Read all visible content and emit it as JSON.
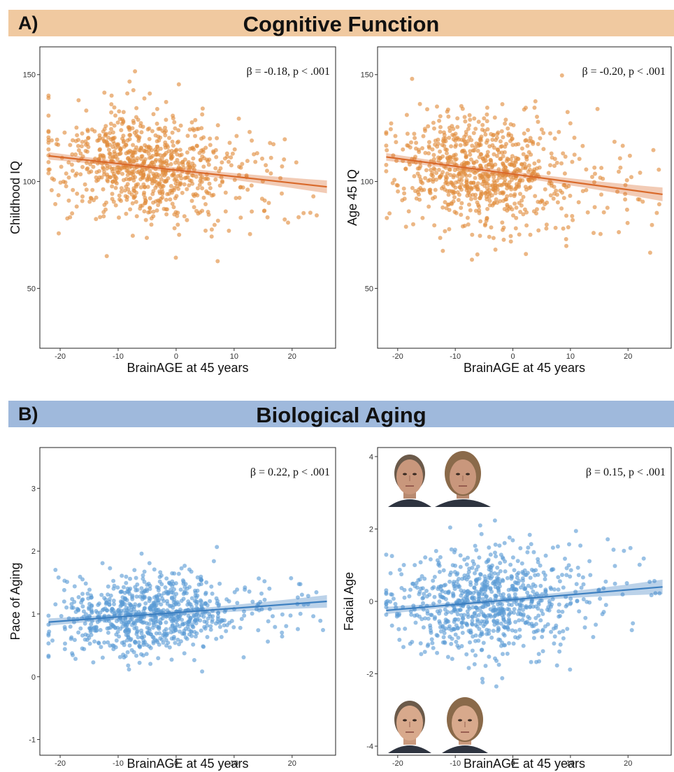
{
  "banners": {
    "a": {
      "letter": "A)",
      "title": "Cognitive Function",
      "color": "#f0c9a0"
    },
    "b": {
      "letter": "B)",
      "title": "Biological Aging",
      "color": "#9fb9dc"
    }
  },
  "colors": {
    "orange": "#e08a3a",
    "orange_line": "#d9692a",
    "blue": "#5b9bd5",
    "blue_line": "#3c7fc0"
  },
  "chart_data": [
    {
      "type": "scatter",
      "xlabel": "BrainAGE at 45 years",
      "ylabel": "Childhood IQ",
      "annotation": "β = -0.18, p < .001",
      "xlim": [
        -23.5,
        27.5
      ],
      "ylim": [
        22,
        163
      ],
      "xticks": [
        -20,
        -10,
        0,
        10,
        20
      ],
      "yticks": [
        50,
        100,
        150
      ],
      "trend": {
        "x": [
          -22,
          26
        ],
        "y": [
          112,
          97.5
        ],
        "band": [
          1.2,
          3.0
        ]
      },
      "scatter_center": [
        -5,
        106
      ],
      "scatter_spread": [
        7.5,
        13
      ],
      "n_points": 820,
      "color": "orange",
      "grid": false
    },
    {
      "type": "scatter",
      "xlabel": "BrainAGE at 45 years",
      "ylabel": "Age 45 IQ",
      "annotation": "β = -0.20, p < .001",
      "xlim": [
        -23.5,
        27.5
      ],
      "ylim": [
        22,
        163
      ],
      "xticks": [
        -20,
        -10,
        0,
        10,
        20
      ],
      "yticks": [
        50,
        100,
        150
      ],
      "trend": {
        "x": [
          -22,
          26
        ],
        "y": [
          111.5,
          94
        ],
        "band": [
          1.2,
          3.2
        ]
      },
      "scatter_center": [
        -5,
        105
      ],
      "scatter_spread": [
        7.5,
        13
      ],
      "n_points": 820,
      "color": "orange",
      "grid": false
    },
    {
      "type": "scatter",
      "xlabel": "BrainAGE at 45 years",
      "ylabel": "Pace of Aging",
      "annotation": "β = 0.22, p < .001",
      "xlim": [
        -23.5,
        27.5
      ],
      "ylim": [
        -1.25,
        3.65
      ],
      "xticks": [
        -20,
        -10,
        0,
        10,
        20
      ],
      "yticks": [
        -1,
        0,
        1,
        2,
        3
      ],
      "trend": {
        "x": [
          -22,
          26
        ],
        "y": [
          0.87,
          1.2
        ],
        "band": [
          0.04,
          0.1
        ]
      },
      "scatter_center": [
        -5,
        1.0
      ],
      "scatter_spread": [
        7.5,
        0.3
      ],
      "n_points": 820,
      "color": "blue",
      "grid": false
    },
    {
      "type": "scatter",
      "xlabel": "BrainAGE at 45 years",
      "ylabel": "Facial Age",
      "annotation": "β = 0.15, p < .001",
      "xlim": [
        -23.5,
        27.5
      ],
      "ylim": [
        -4.25,
        4.25
      ],
      "xticks": [
        -20,
        -10,
        0,
        10,
        20
      ],
      "yticks": [
        -4,
        -2,
        0,
        2,
        4
      ],
      "trend": {
        "x": [
          -22,
          26
        ],
        "y": [
          -0.25,
          0.4
        ],
        "band": [
          0.06,
          0.2
        ]
      },
      "scatter_center": [
        -5,
        0.0
      ],
      "scatter_spread": [
        7.5,
        0.75
      ],
      "n_points": 820,
      "color": "blue",
      "grid": false
    }
  ]
}
